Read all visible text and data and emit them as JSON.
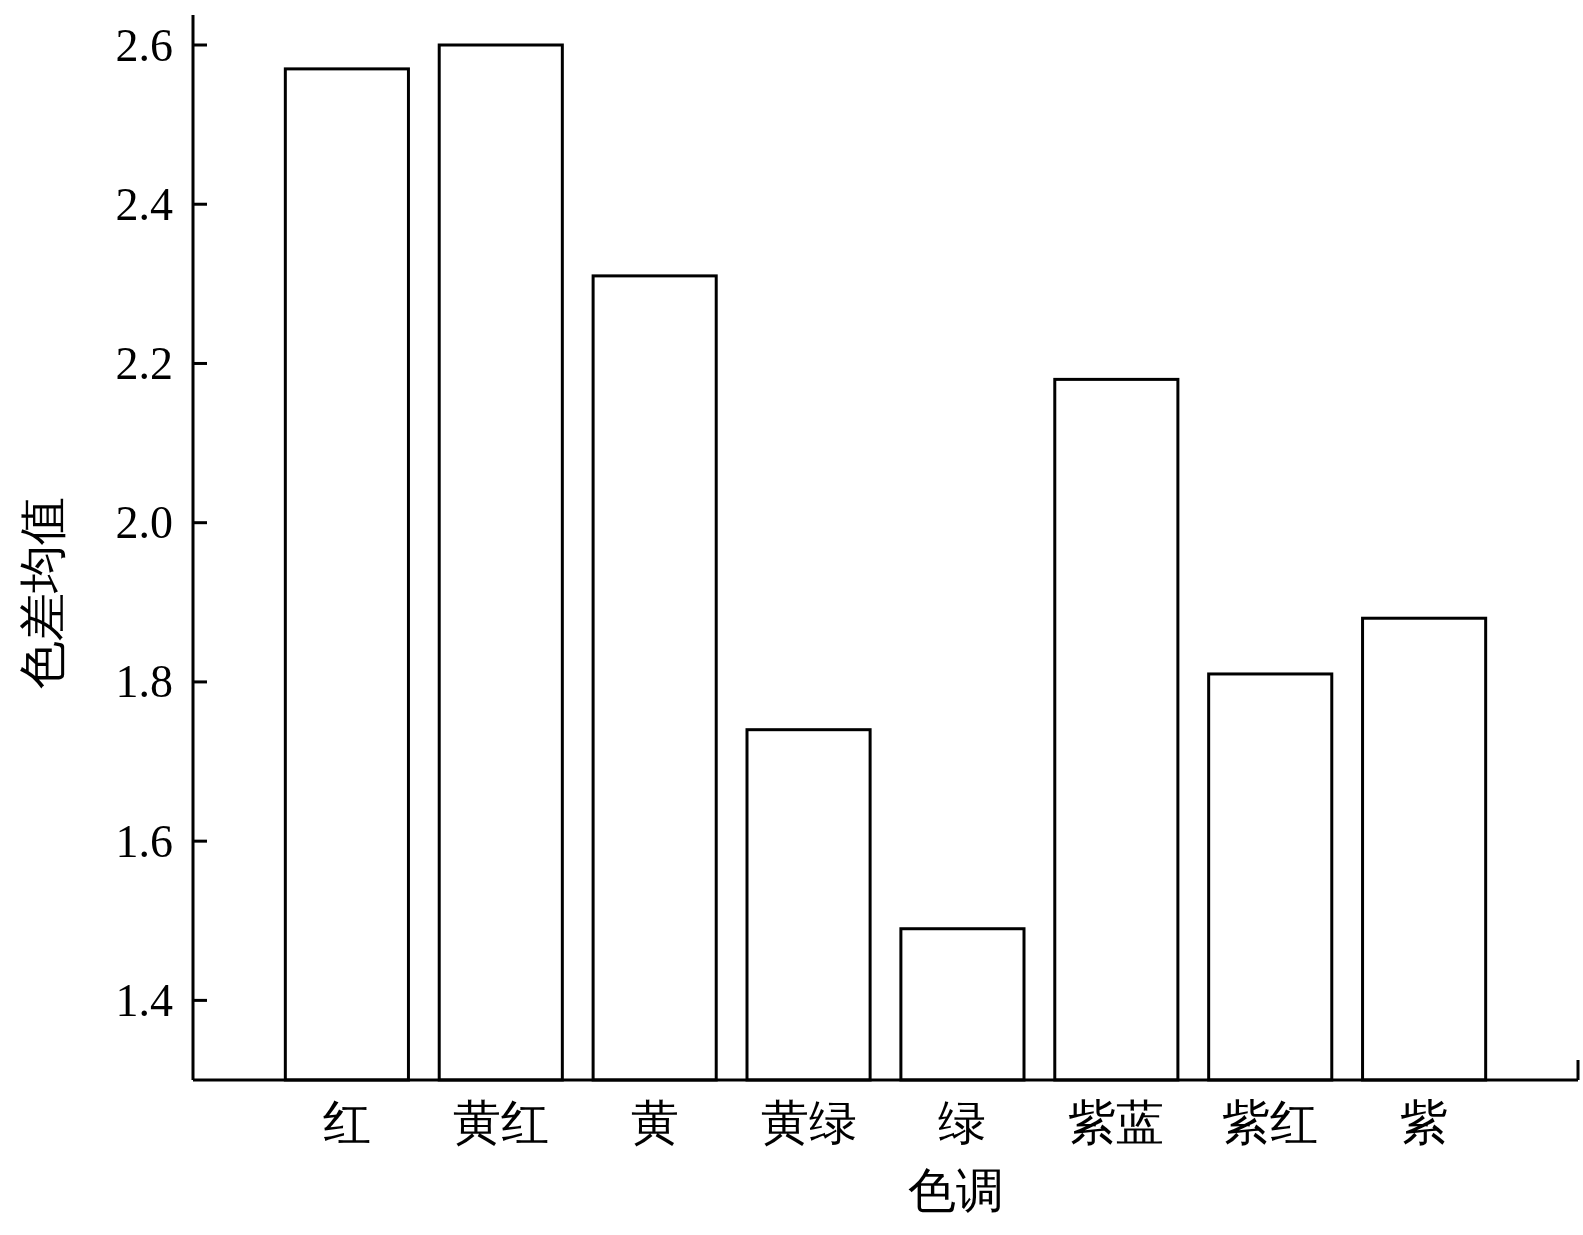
{
  "chart_data": {
    "type": "bar",
    "xlabel": "色调",
    "ylabel": "色差均值",
    "categories": [
      "红",
      "黄红",
      "黄",
      "黄绿",
      "绿",
      "紫蓝",
      "紫红",
      "紫"
    ],
    "values": [
      2.57,
      2.6,
      2.31,
      1.74,
      1.49,
      2.18,
      1.81,
      1.88
    ],
    "color": "#ffffff",
    "ylim": [
      1.3,
      2.6
    ],
    "yticks": [
      1.4,
      1.6,
      1.8,
      {
        "value": 2.0,
        "label": "2.0"
      },
      2.2,
      2.4,
      2.6
    ]
  }
}
